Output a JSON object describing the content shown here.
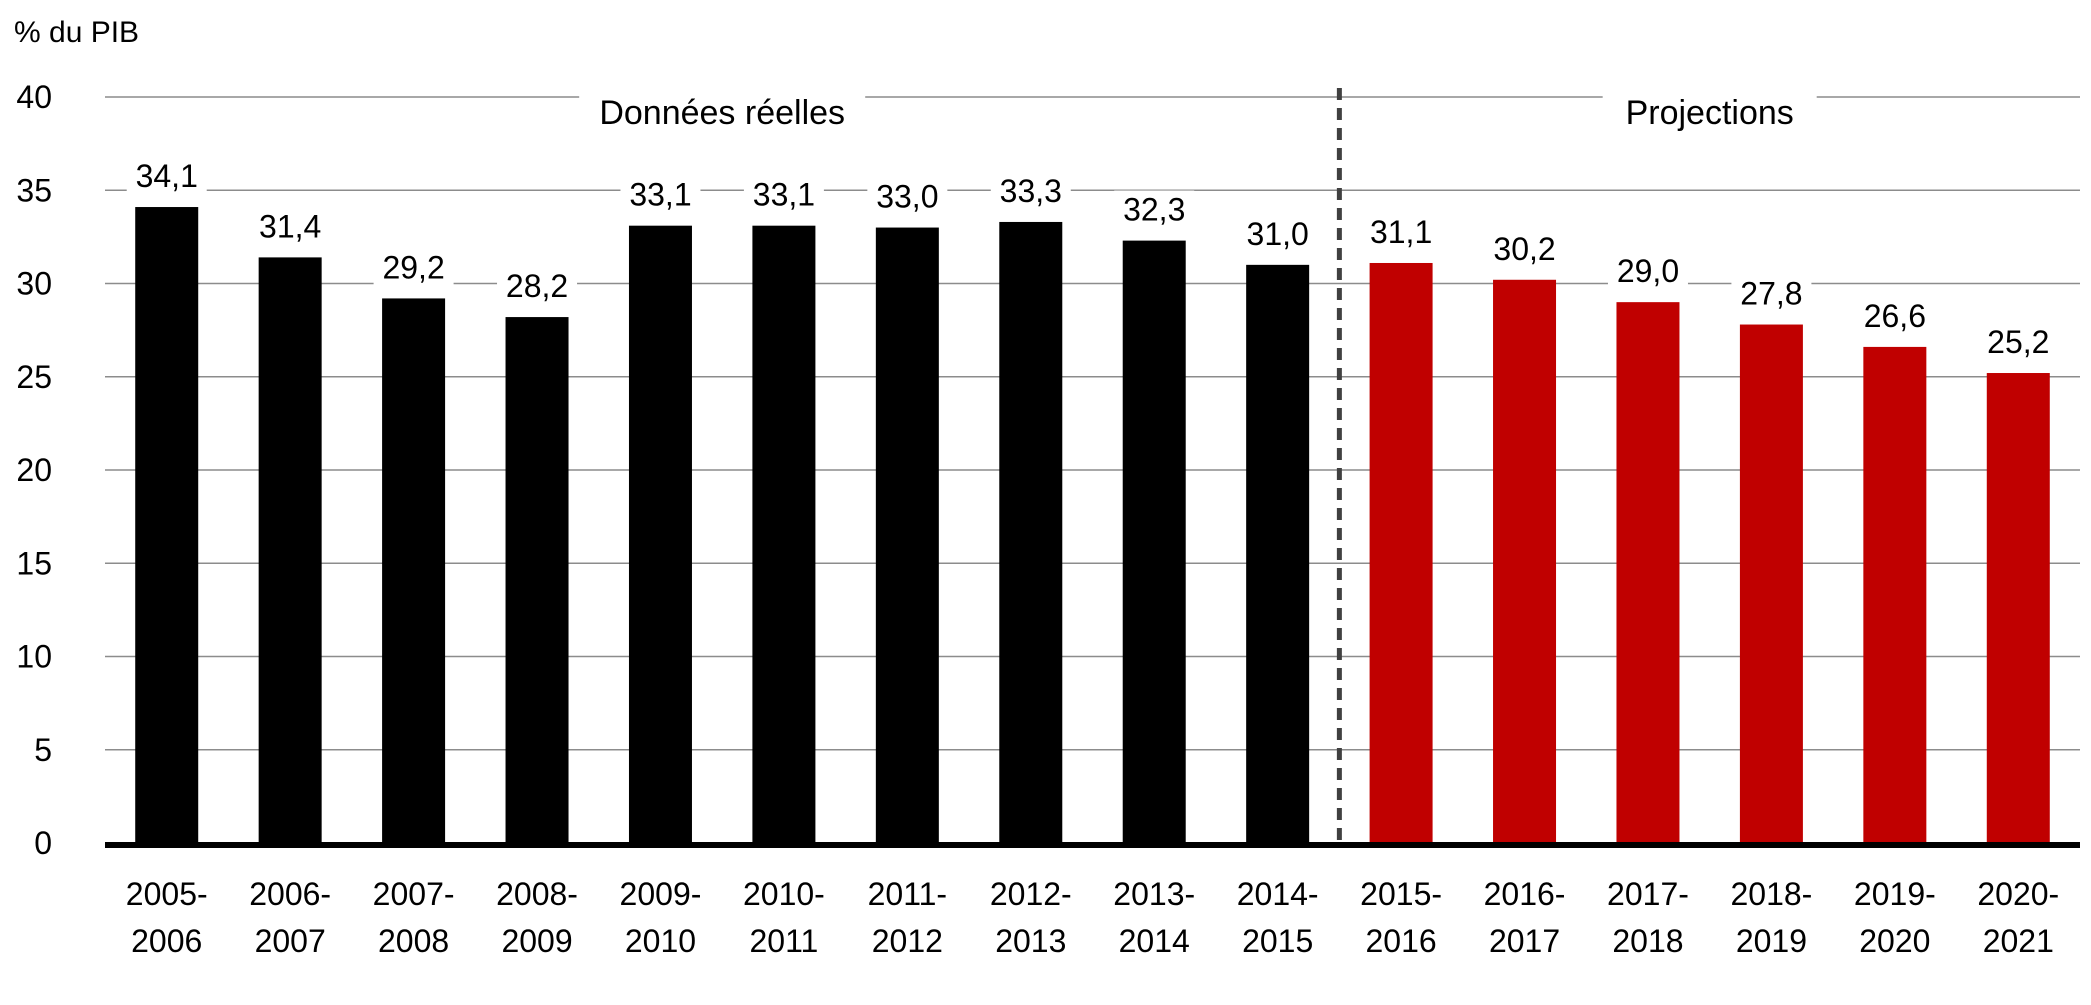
{
  "chart_data": {
    "type": "bar",
    "ylabel": "% du PIB",
    "ylim": [
      0,
      40
    ],
    "yticks": [
      0,
      5,
      10,
      15,
      20,
      25,
      30,
      35,
      40
    ],
    "grid": true,
    "categories": [
      [
        "2005-",
        "2006"
      ],
      [
        "2006-",
        "2007"
      ],
      [
        "2007-",
        "2008"
      ],
      [
        "2008-",
        "2009"
      ],
      [
        "2009-",
        "2010"
      ],
      [
        "2010-",
        "2011"
      ],
      [
        "2011-",
        "2012"
      ],
      [
        "2012-",
        "2013"
      ],
      [
        "2013-",
        "2014"
      ],
      [
        "2014-",
        "2015"
      ],
      [
        "2015-",
        "2016"
      ],
      [
        "2016-",
        "2017"
      ],
      [
        "2017-",
        "2018"
      ],
      [
        "2018-",
        "2019"
      ],
      [
        "2019-",
        "2020"
      ],
      [
        "2020-",
        "2021"
      ]
    ],
    "values": [
      34.1,
      31.4,
      29.2,
      28.2,
      33.1,
      33.1,
      33.0,
      33.3,
      32.3,
      31.0,
      31.1,
      30.2,
      29.0,
      27.8,
      26.6,
      25.2
    ],
    "value_labels": [
      "34,1",
      "31,4",
      "29,2",
      "28,2",
      "33,1",
      "33,1",
      "33,0",
      "33,3",
      "32,3",
      "31,0",
      "31,1",
      "30,2",
      "29,0",
      "27,8",
      "26,6",
      "25,2"
    ],
    "sections": [
      {
        "label": "Données réelles",
        "start_index": 0,
        "end_index": 9,
        "color": "#000000"
      },
      {
        "label": "Projections",
        "start_index": 10,
        "end_index": 15,
        "color": "#C00000"
      }
    ],
    "divider": {
      "after_index": 9,
      "style": "dashed"
    }
  }
}
